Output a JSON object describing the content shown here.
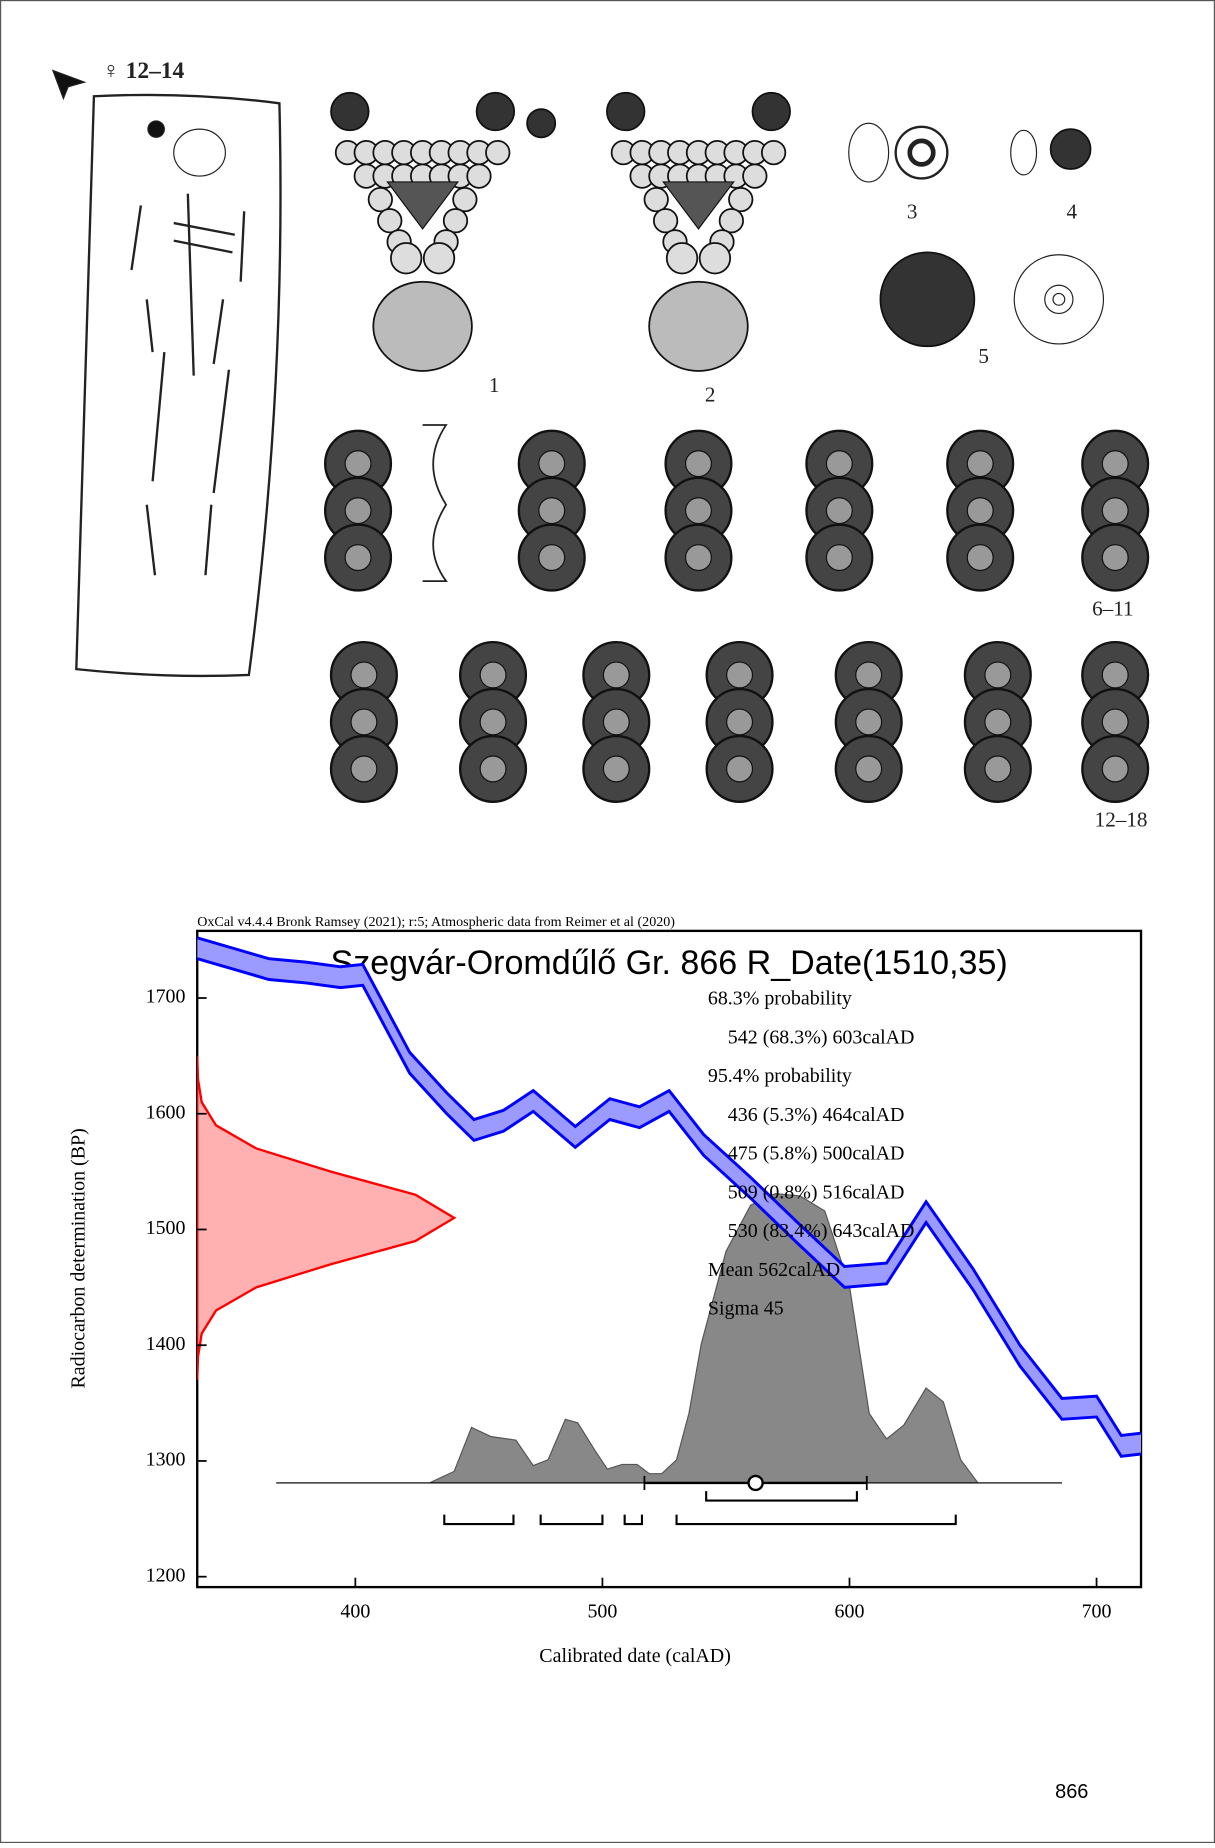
{
  "figure": {
    "grave_label": "♀ 12–14",
    "item_labels": [
      "1",
      "2",
      "3",
      "4",
      "5",
      "6–11",
      "12–18"
    ]
  },
  "chart_data": {
    "type": "oxcal",
    "credit": "OxCal v4.4.4 Bronk Ramsey (2021); r:5; Atmospheric data from Reimer et al (2020)",
    "title": "Szegvár-Oromdűlő Gr. 866 R_Date(1510,35)",
    "x_label": "Calibrated date (calAD)",
    "y_label": "Radiocarbon determination (BP)",
    "xlim": [
      336,
      718
    ],
    "xticks": [
      400,
      500,
      600,
      700
    ],
    "ylim": [
      1191,
      1758
    ],
    "yticks": [
      1200,
      1300,
      1400,
      1500,
      1600,
      1700
    ],
    "calibration_curve": {
      "color": "#0000ff",
      "fill": "#9a9aff",
      "x": [
        336,
        365,
        380,
        394,
        403,
        422,
        437,
        448,
        460,
        472,
        489,
        503,
        515,
        527,
        541,
        560,
        579,
        598,
        615,
        631,
        650,
        669,
        686,
        700,
        710,
        718
      ],
      "upper": [
        1752,
        1734,
        1731,
        1727,
        1729,
        1653,
        1618,
        1595,
        1603,
        1620,
        1589,
        1613,
        1606,
        1620,
        1582,
        1545,
        1506,
        1468,
        1471,
        1524,
        1466,
        1400,
        1354,
        1356,
        1322,
        1324
      ],
      "lower": [
        1734,
        1716,
        1713,
        1709,
        1711,
        1635,
        1600,
        1577,
        1585,
        1602,
        1571,
        1595,
        1588,
        1602,
        1564,
        1527,
        1488,
        1450,
        1453,
        1506,
        1448,
        1382,
        1336,
        1338,
        1304,
        1306
      ]
    },
    "radiocarbon": {
      "color": "#ff0000",
      "fill": "#ffb0b0",
      "y": [
        1650,
        1630,
        1610,
        1590,
        1570,
        1550,
        1530,
        1510,
        1490,
        1470,
        1450,
        1430,
        1410,
        1390,
        1370
      ],
      "values": [
        0,
        0.3,
        1.8,
        7.6,
        23.9,
        54.1,
        88.3,
        104,
        88.3,
        54.1,
        23.9,
        7.6,
        1.8,
        0.3,
        0
      ]
    },
    "posterior": {
      "color": "#888888",
      "baseline": 1281,
      "x": [
        368,
        430,
        440,
        447,
        455,
        465,
        472,
        478,
        485,
        490,
        497,
        502,
        508,
        514,
        519,
        524,
        530,
        535,
        540,
        550,
        560,
        570,
        580,
        590,
        600,
        608,
        615,
        622,
        631,
        638,
        645,
        652,
        686
      ],
      "values": [
        0,
        0,
        10,
        48,
        40,
        37,
        15,
        20,
        55,
        52,
        28,
        12,
        16,
        16,
        8,
        8,
        20,
        60,
        120,
        200,
        240,
        250,
        248,
        235,
        170,
        60,
        38,
        50,
        82,
        70,
        20,
        0,
        0
      ]
    },
    "range_68": {
      "heading": "68.3% probability",
      "values": [
        [
          542,
          603
        ]
      ],
      "value_labels": [
        "542 (68.3%) 603calAD"
      ]
    },
    "range_95": {
      "heading": "95.4% probability",
      "values": [
        [
          436,
          464
        ],
        [
          475,
          500
        ],
        [
          509,
          516
        ],
        [
          530,
          643
        ]
      ],
      "value_labels": [
        "436 (5.3%) 464calAD",
        "475 (5.8%) 500calAD",
        "509 (0.8%) 516calAD",
        "530 (83.4%) 643calAD"
      ]
    },
    "mean": {
      "value": 562,
      "label": "Mean 562calAD"
    },
    "sigma": {
      "value": 45,
      "label": "Sigma 45"
    }
  },
  "page_number": "866"
}
